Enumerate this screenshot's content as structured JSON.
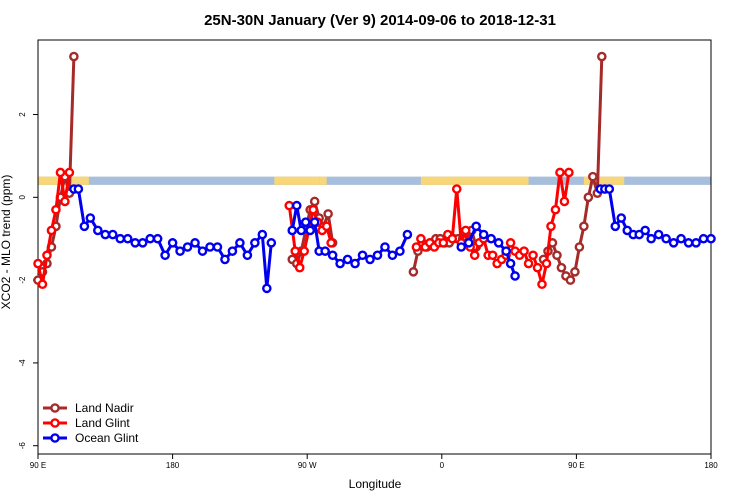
{
  "chart_data": {
    "type": "line",
    "title": "25N-30N January (Ver 9)   2014-09-06 to 2018-12-31",
    "xlabel": "Longitude",
    "ylabel": "XCO2 - MLO trend (ppm)",
    "xlim": [
      90,
      540
    ],
    "ylim": [
      -6.2,
      3.8
    ],
    "x_ticks": [
      {
        "value": 90,
        "label": "90 E"
      },
      {
        "value": 180,
        "label": "180"
      },
      {
        "value": 270,
        "label": "90 W"
      },
      {
        "value": 360,
        "label": "0"
      },
      {
        "value": 450,
        "label": "90 E"
      },
      {
        "value": 540,
        "label": "180"
      }
    ],
    "y_ticks": [
      {
        "value": 2,
        "label": "2"
      },
      {
        "value": 0,
        "label": "0"
      },
      {
        "value": -2,
        "label": "-2"
      },
      {
        "value": -4,
        "label": "-4"
      },
      {
        "value": -6,
        "label": "-6"
      }
    ],
    "legend_position": "bottom-left",
    "land_strip": {
      "y_range": [
        0.3,
        0.5
      ],
      "ocean_color": "#a8bfdc",
      "land_color": "#f7d77a",
      "land_x_ranges": [
        [
          90,
          124
        ],
        [
          248,
          278
        ],
        [
          278,
          283
        ],
        [
          346,
          418
        ],
        [
          455,
          482
        ]
      ]
    },
    "series": [
      {
        "name": "Land Nadir",
        "color": "#a52a2a",
        "segments": [
          [
            [
              90,
              -2.0
            ],
            [
              93,
              -1.8
            ],
            [
              96,
              -1.6
            ],
            [
              99,
              -1.2
            ],
            [
              102,
              -0.7
            ],
            [
              105,
              0.0
            ],
            [
              108,
              0.5
            ],
            [
              111,
              0.1
            ],
            [
              114,
              3.4
            ]
          ],
          [
            [
              260,
              -1.5
            ],
            [
              263,
              -1.6
            ],
            [
              266,
              -1.3
            ],
            [
              269,
              -0.8
            ],
            [
              272,
              -0.3
            ],
            [
              275,
              -0.1
            ],
            [
              278,
              -0.5
            ],
            [
              281,
              -0.7
            ],
            [
              284,
              -0.4
            ],
            [
              287,
              -1.1
            ]
          ],
          [
            [
              341,
              -1.8
            ],
            [
              344,
              -1.3
            ],
            [
              347,
              -1.1
            ],
            [
              350,
              -1.2
            ],
            [
              353,
              -1.1
            ],
            [
              356,
              -1.0
            ],
            [
              359,
              -1.0
            ],
            [
              362,
              -1.1
            ],
            [
              365,
              -1.1
            ],
            [
              368,
              -1.0
            ],
            [
              371,
              -1.0
            ],
            [
              374,
              -1.0
            ],
            [
              377,
              -1.1
            ],
            [
              380,
              -0.8
            ],
            [
              383,
              -1.2
            ]
          ],
          [
            [
              428,
              -1.5
            ],
            [
              431,
              -1.3
            ],
            [
              434,
              -1.1
            ],
            [
              437,
              -1.4
            ],
            [
              440,
              -1.7
            ],
            [
              443,
              -1.9
            ],
            [
              446,
              -2.0
            ],
            [
              449,
              -1.8
            ],
            [
              452,
              -1.2
            ],
            [
              455,
              -0.7
            ],
            [
              458,
              0.0
            ],
            [
              461,
              0.5
            ],
            [
              464,
              0.1
            ],
            [
              467,
              3.4
            ]
          ]
        ]
      },
      {
        "name": "Land Glint",
        "color": "#ff0000",
        "segments": [
          [
            [
              90,
              -1.6
            ],
            [
              93,
              -2.1
            ],
            [
              96,
              -1.4
            ],
            [
              99,
              -0.8
            ],
            [
              102,
              -0.3
            ],
            [
              105,
              0.6
            ],
            [
              108,
              -0.1
            ],
            [
              111,
              0.6
            ]
          ],
          [
            [
              258,
              -0.2
            ],
            [
              262,
              -1.3
            ],
            [
              265,
              -1.7
            ],
            [
              268,
              -1.3
            ],
            [
              271,
              -0.8
            ],
            [
              274,
              -0.3
            ],
            [
              277,
              -0.6
            ],
            [
              280,
              -0.8
            ],
            [
              283,
              -0.7
            ],
            [
              286,
              -1.1
            ]
          ],
          [
            [
              343,
              -1.2
            ],
            [
              346,
              -1.0
            ],
            [
              349,
              -1.2
            ],
            [
              352,
              -1.1
            ],
            [
              355,
              -1.2
            ],
            [
              358,
              -1.1
            ],
            [
              361,
              -1.1
            ],
            [
              364,
              -0.9
            ],
            [
              367,
              -1.0
            ],
            [
              370,
              0.2
            ],
            [
              373,
              -1.1
            ],
            [
              376,
              -0.8
            ],
            [
              379,
              -1.2
            ],
            [
              382,
              -1.4
            ],
            [
              385,
              -1.1
            ],
            [
              388,
              -1.0
            ],
            [
              391,
              -1.4
            ],
            [
              394,
              -1.4
            ],
            [
              397,
              -1.6
            ],
            [
              400,
              -1.5
            ],
            [
              403,
              -1.4
            ],
            [
              406,
              -1.1
            ],
            [
              409,
              -1.3
            ],
            [
              412,
              -1.4
            ],
            [
              415,
              -1.3
            ],
            [
              418,
              -1.6
            ]
          ],
          [
            [
              421,
              -1.4
            ],
            [
              424,
              -1.7
            ],
            [
              427,
              -2.1
            ],
            [
              430,
              -1.6
            ],
            [
              433,
              -0.7
            ],
            [
              436,
              -0.3
            ],
            [
              439,
              0.6
            ],
            [
              442,
              -0.1
            ],
            [
              445,
              0.6
            ]
          ]
        ]
      },
      {
        "name": "Ocean Glint",
        "color": "#0000ee",
        "segments": [
          [
            [
              114,
              0.2
            ],
            [
              117,
              0.2
            ],
            [
              121,
              -0.7
            ],
            [
              125,
              -0.5
            ],
            [
              130,
              -0.8
            ],
            [
              135,
              -0.9
            ],
            [
              140,
              -0.9
            ],
            [
              145,
              -1.0
            ],
            [
              150,
              -1.0
            ],
            [
              155,
              -1.1
            ],
            [
              160,
              -1.1
            ],
            [
              165,
              -1.0
            ],
            [
              170,
              -1.0
            ],
            [
              175,
              -1.4
            ],
            [
              180,
              -1.1
            ],
            [
              185,
              -1.3
            ],
            [
              190,
              -1.2
            ],
            [
              195,
              -1.1
            ],
            [
              200,
              -1.3
            ],
            [
              205,
              -1.2
            ],
            [
              210,
              -1.2
            ],
            [
              215,
              -1.5
            ],
            [
              220,
              -1.3
            ],
            [
              225,
              -1.1
            ],
            [
              230,
              -1.4
            ],
            [
              235,
              -1.1
            ],
            [
              240,
              -0.9
            ],
            [
              243,
              -2.2
            ],
            [
              246,
              -1.1
            ]
          ],
          [
            [
              260,
              -0.8
            ],
            [
              263,
              -0.2
            ],
            [
              266,
              -0.8
            ],
            [
              269,
              -0.6
            ],
            [
              272,
              -0.8
            ],
            [
              275,
              -0.6
            ],
            [
              278,
              -1.3
            ],
            [
              282,
              -1.3
            ],
            [
              287,
              -1.4
            ],
            [
              292,
              -1.6
            ],
            [
              297,
              -1.5
            ],
            [
              302,
              -1.6
            ],
            [
              307,
              -1.4
            ],
            [
              312,
              -1.5
            ],
            [
              317,
              -1.4
            ],
            [
              322,
              -1.2
            ],
            [
              327,
              -1.4
            ],
            [
              332,
              -1.3
            ],
            [
              337,
              -0.9
            ]
          ],
          [
            [
              373,
              -1.2
            ],
            [
              378,
              -1.1
            ],
            [
              383,
              -0.7
            ],
            [
              388,
              -0.9
            ],
            [
              393,
              -1.0
            ],
            [
              398,
              -1.1
            ],
            [
              403,
              -1.3
            ],
            [
              406,
              -1.6
            ],
            [
              409,
              -1.9
            ]
          ],
          [
            [
              466,
              0.2
            ],
            [
              469,
              0.2
            ],
            [
              472,
              0.2
            ],
            [
              476,
              -0.7
            ],
            [
              480,
              -0.5
            ],
            [
              484,
              -0.8
            ],
            [
              488,
              -0.9
            ],
            [
              492,
              -0.9
            ],
            [
              496,
              -0.8
            ],
            [
              500,
              -1.0
            ],
            [
              505,
              -0.9
            ],
            [
              510,
              -1.0
            ],
            [
              515,
              -1.1
            ],
            [
              520,
              -1.0
            ],
            [
              525,
              -1.1
            ],
            [
              530,
              -1.1
            ],
            [
              535,
              -1.0
            ],
            [
              540,
              -1.0
            ]
          ]
        ]
      }
    ]
  }
}
